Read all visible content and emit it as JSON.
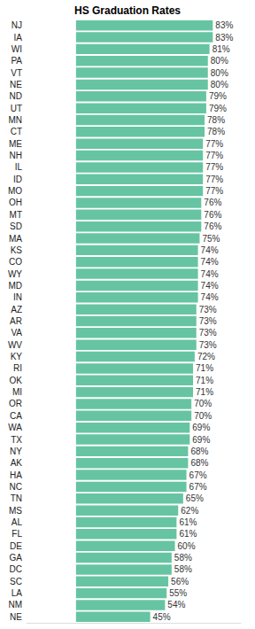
{
  "chart_data": {
    "type": "bar",
    "title": "HS Graduation Rates",
    "orientation": "horizontal",
    "categories": [
      "NJ",
      "IA",
      "WI",
      "PA",
      "VT",
      "NE",
      "ND",
      "UT",
      "MN",
      "CT",
      "ME",
      "NH",
      "IL",
      "ID",
      "MO",
      "OH",
      "MT",
      "SD",
      "MA",
      "KS",
      "CO",
      "WY",
      "MD",
      "IN",
      "AZ",
      "AR",
      "VA",
      "WV",
      "KY",
      "RI",
      "OK",
      "MI",
      "OR",
      "CA",
      "WA",
      "TX",
      "NY",
      "AK",
      "HA",
      "NC",
      "TN",
      "MS",
      "AL",
      "FL",
      "DE",
      "GA",
      "DC",
      "SC",
      "LA",
      "NM",
      "NE"
    ],
    "values": [
      83,
      83,
      81,
      80,
      80,
      80,
      79,
      79,
      78,
      78,
      77,
      77,
      77,
      77,
      77,
      76,
      76,
      76,
      75,
      74,
      74,
      74,
      74,
      74,
      73,
      73,
      73,
      73,
      72,
      71,
      71,
      71,
      70,
      70,
      69,
      69,
      68,
      68,
      67,
      67,
      65,
      62,
      61,
      61,
      60,
      58,
      58,
      56,
      55,
      54,
      45
    ],
    "value_labels": [
      "83%",
      "83%",
      "81%",
      "80%",
      "80%",
      "80%",
      "79%",
      "79%",
      "78%",
      "78%",
      "77%",
      "77%",
      "77%",
      "77%",
      "77%",
      "76%",
      "76%",
      "76%",
      "75%",
      "74%",
      "74%",
      "74%",
      "74%",
      "74%",
      "73%",
      "73%",
      "73%",
      "73%",
      "72%",
      "71%",
      "71%",
      "71%",
      "70%",
      "70%",
      "69%",
      "69%",
      "68%",
      "68%",
      "67%",
      "67%",
      "65%",
      "62%",
      "61%",
      "61%",
      "60%",
      "58%",
      "58%",
      "56%",
      "55%",
      "54%",
      "45%"
    ],
    "color": "#66c4a3",
    "xlim": [
      -30,
      100
    ],
    "grid": false,
    "data_labels": true,
    "tick_labels": "y"
  }
}
